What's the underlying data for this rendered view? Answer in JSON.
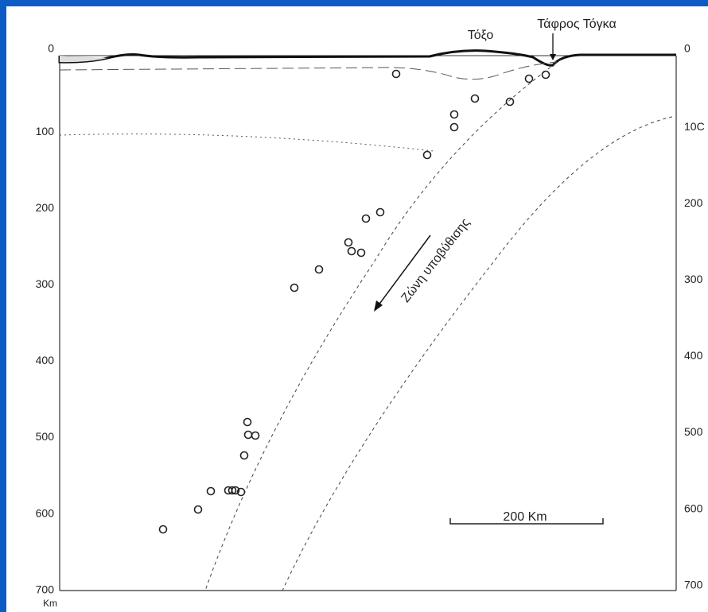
{
  "labels": {
    "arc": "Τόξο",
    "trench": "Τάφρος Τόγκα",
    "subduction_zone": "Ζώνη υποβύθισης",
    "scale": "200 Km",
    "depth_unit": "Km"
  },
  "left_axis_ticks": [
    "0",
    "100",
    "200",
    "300",
    "400",
    "500",
    "600",
    "700"
  ],
  "right_axis_ticks": [
    "0",
    "10C",
    "200",
    "300",
    "400",
    "500",
    "600",
    "700"
  ]
}
